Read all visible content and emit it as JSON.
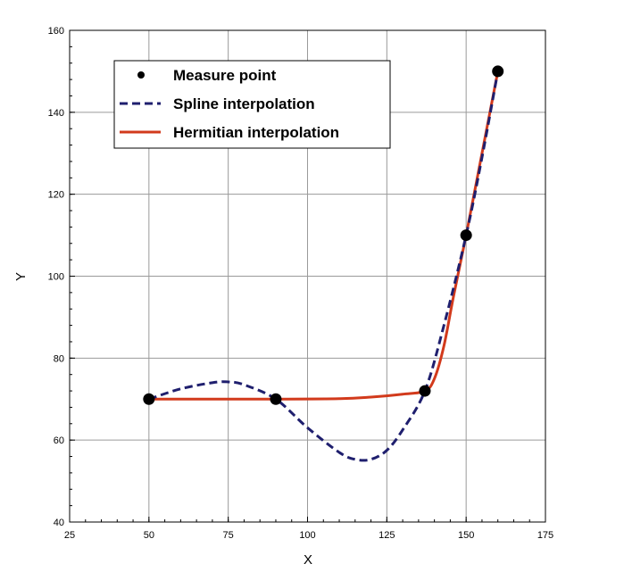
{
  "chart_data": {
    "type": "line",
    "title": "",
    "xlabel": "X",
    "ylabel": "Y",
    "xlim": [
      25,
      175
    ],
    "ylim": [
      40,
      160
    ],
    "xticks": [
      25,
      50,
      75,
      100,
      125,
      150,
      175
    ],
    "yticks": [
      40,
      60,
      80,
      100,
      120,
      140,
      160
    ],
    "grid": true,
    "legend_position": "top-left",
    "colors": {
      "measure": "#000000",
      "spline": "#1f1f6e",
      "hermite": "#d23a1c",
      "grid": "#9a9a9a"
    },
    "series": [
      {
        "name": "Measure point",
        "style": "marker",
        "x": [
          50,
          90,
          137,
          150,
          160
        ],
        "y": [
          70,
          70,
          72,
          110,
          150
        ]
      },
      {
        "name": "Spline interpolation",
        "style": "dashed",
        "x": [
          50,
          60,
          70,
          75,
          80,
          90,
          100,
          110,
          115,
          120,
          125,
          130,
          137,
          143,
          150,
          155,
          160
        ],
        "y": [
          70,
          72.5,
          74,
          74.2,
          73.5,
          70,
          63,
          57,
          55.3,
          55.3,
          57.5,
          62.5,
          72,
          88,
          110,
          129,
          150
        ]
      },
      {
        "name": "Hermitian interpolation",
        "style": "solid",
        "x": [
          50,
          70,
          90,
          110,
          120,
          130,
          137,
          140,
          143,
          146,
          150,
          155,
          160
        ],
        "y": [
          70,
          70,
          70,
          70.1,
          70.5,
          71.2,
          72,
          75,
          83,
          95,
          110,
          130,
          150
        ]
      }
    ]
  }
}
